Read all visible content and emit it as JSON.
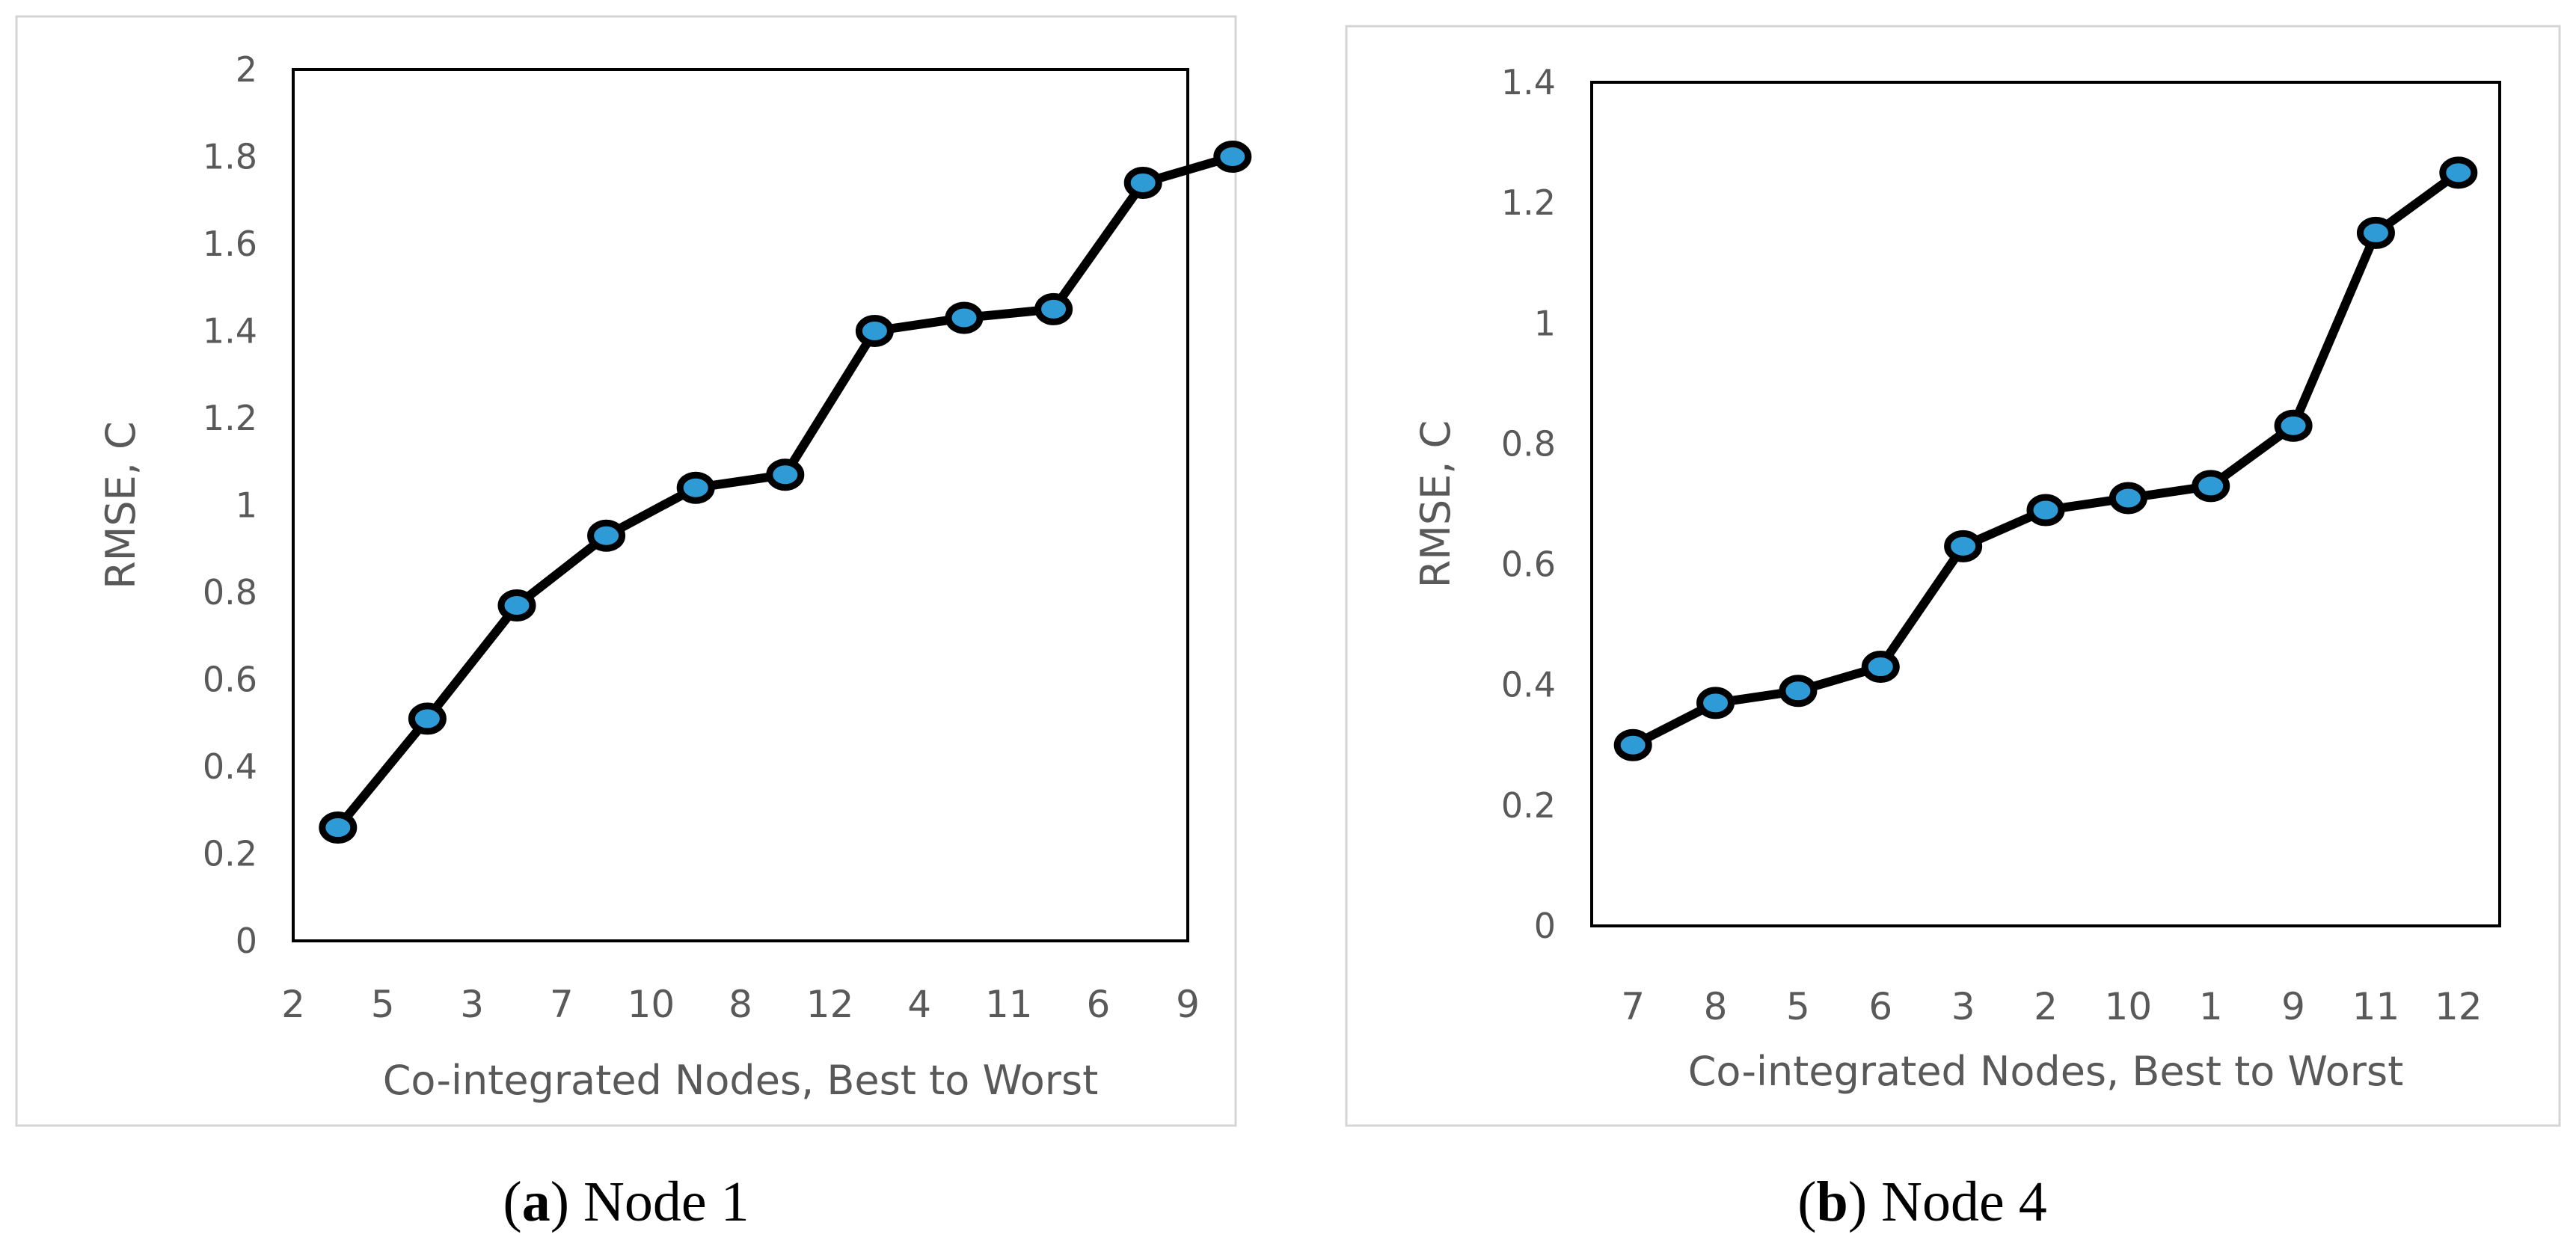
{
  "panels": [
    {
      "caption_letter": "a",
      "caption_text": "Node 1",
      "chart_data": {
        "type": "line",
        "categories": [
          "2",
          "5",
          "3",
          "7",
          "10",
          "8",
          "12",
          "4",
          "11",
          "6",
          "9"
        ],
        "values": [
          0.26,
          0.51,
          0.77,
          0.93,
          1.04,
          1.07,
          1.4,
          1.43,
          1.45,
          1.74,
          1.8
        ],
        "xlabel": "Co-integrated Nodes, Best to Worst",
        "ylabel": "RMSE, C",
        "ylim": [
          0,
          2
        ],
        "yticks": [
          0,
          0.2,
          0.4,
          0.6,
          0.8,
          1,
          1.2,
          1.4,
          1.6,
          1.8,
          2
        ],
        "grid": false,
        "line_color": "#000000",
        "marker_color": "#2e9bd6"
      }
    },
    {
      "caption_letter": "b",
      "caption_text": "Node 4",
      "chart_data": {
        "type": "line",
        "categories": [
          "7",
          "8",
          "5",
          "6",
          "3",
          "2",
          "10",
          "1",
          "9",
          "11",
          "12"
        ],
        "values": [
          0.3,
          0.37,
          0.39,
          0.43,
          0.63,
          0.69,
          0.71,
          0.73,
          0.83,
          1.15,
          1.25
        ],
        "xlabel": "Co-integrated Nodes, Best to Worst",
        "ylabel": "RMSE, C",
        "ylim": [
          0,
          1.4
        ],
        "yticks": [
          0,
          0.2,
          0.4,
          0.6,
          0.8,
          1,
          1.2,
          1.4
        ],
        "grid": false,
        "line_color": "#000000",
        "marker_color": "#2e9bd6"
      }
    }
  ]
}
